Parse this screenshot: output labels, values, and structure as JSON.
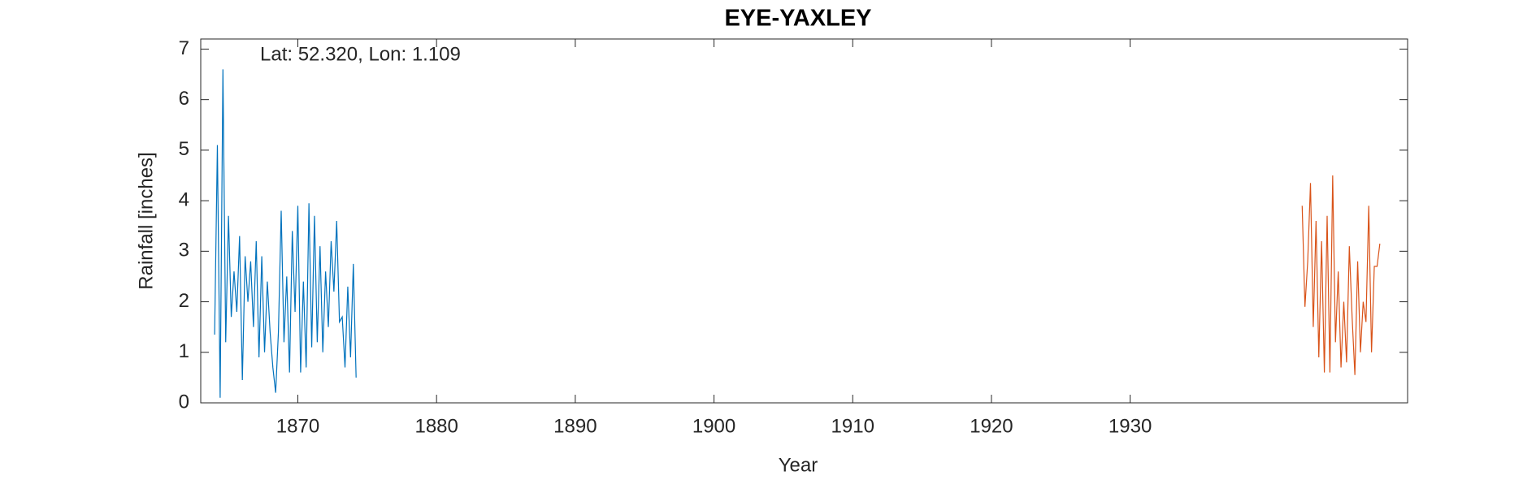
{
  "chart_data": {
    "type": "line",
    "title": "EYE-YAXLEY",
    "annotation": "Lat: 52.320, Lon: 1.109",
    "xlabel": "Year",
    "ylabel": "Rainfall [inches]",
    "xlim": [
      1863,
      1950
    ],
    "xticks": [
      1870,
      1880,
      1890,
      1900,
      1910,
      1920,
      1930
    ],
    "ylim": [
      0,
      7.2
    ],
    "yticks": [
      0,
      1,
      2,
      3,
      4,
      5,
      6,
      7
    ],
    "series": [
      {
        "color": "#0072BD",
        "x": [
          1864.0,
          1864.2,
          1864.4,
          1864.6,
          1864.8,
          1865.0,
          1865.2,
          1865.4,
          1865.6,
          1865.8,
          1866.0,
          1866.2,
          1866.4,
          1866.6,
          1866.8,
          1867.0,
          1867.2,
          1867.4,
          1867.6,
          1867.8,
          1868.0,
          1868.2,
          1868.4,
          1868.6,
          1868.8,
          1869.0,
          1869.2,
          1869.4,
          1869.6,
          1869.8,
          1870.0,
          1870.2,
          1870.4,
          1870.6,
          1870.8,
          1871.0,
          1871.2,
          1871.4,
          1871.6,
          1871.8,
          1872.0,
          1872.2,
          1872.4,
          1872.6,
          1872.8,
          1873.0,
          1873.2,
          1873.4,
          1873.6,
          1873.8,
          1874.0,
          1874.2
        ],
        "values": [
          1.35,
          5.1,
          0.1,
          6.6,
          1.2,
          3.7,
          1.7,
          2.6,
          1.8,
          3.3,
          0.45,
          2.9,
          2.0,
          2.8,
          1.5,
          3.2,
          0.9,
          2.9,
          1.0,
          2.4,
          1.4,
          0.7,
          0.2,
          1.4,
          3.8,
          1.2,
          2.5,
          0.6,
          3.4,
          1.8,
          3.9,
          0.6,
          2.4,
          0.7,
          3.95,
          1.1,
          3.7,
          1.2,
          3.1,
          1.0,
          2.6,
          1.5,
          3.2,
          2.2,
          3.6,
          1.6,
          1.7,
          0.7,
          2.3,
          0.9,
          2.75,
          0.5
        ]
      },
      {
        "color": "#D95319",
        "x": [
          1942.4,
          1942.6,
          1942.8,
          1943.0,
          1943.2,
          1943.4,
          1943.6,
          1943.8,
          1944.0,
          1944.2,
          1944.4,
          1944.6,
          1944.8,
          1945.0,
          1945.2,
          1945.4,
          1945.6,
          1945.8,
          1946.0,
          1946.2,
          1946.4,
          1946.6,
          1946.8,
          1947.0,
          1947.2,
          1947.4,
          1947.6,
          1947.8,
          1948.0
        ],
        "values": [
          3.9,
          1.9,
          2.8,
          4.35,
          1.5,
          3.6,
          0.9,
          3.2,
          0.6,
          3.7,
          0.6,
          4.5,
          1.2,
          2.6,
          0.7,
          2.0,
          0.8,
          3.1,
          1.7,
          0.55,
          2.8,
          1.0,
          2.0,
          1.6,
          3.9,
          1.0,
          2.7,
          2.7,
          3.15
        ]
      }
    ]
  }
}
